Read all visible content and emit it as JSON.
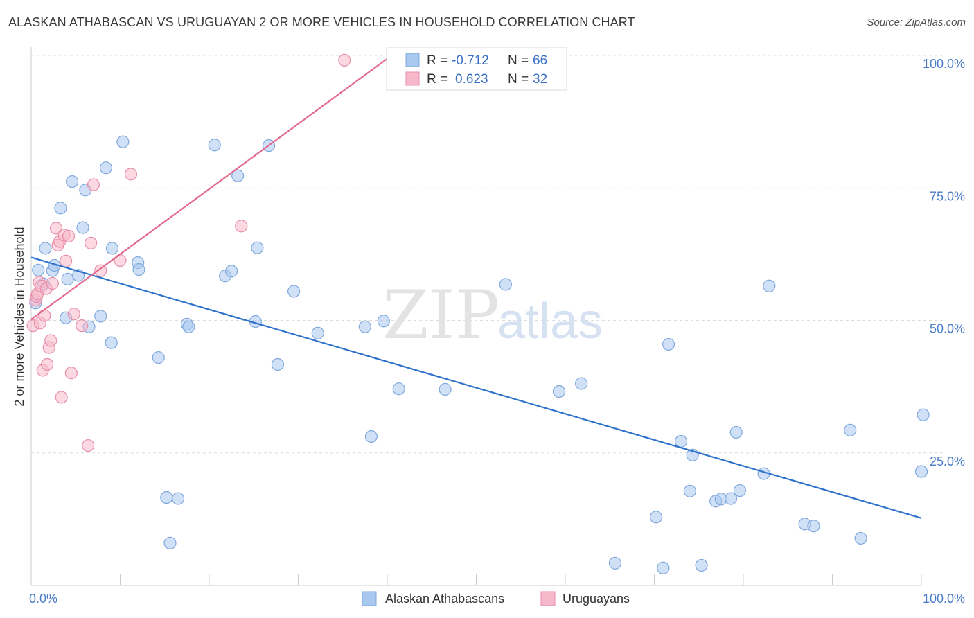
{
  "header": {
    "title": "ALASKAN ATHABASCAN VS URUGUAYAN 2 OR MORE VEHICLES IN HOUSEHOLD CORRELATION CHART",
    "source": "Source: ZipAtlas.com"
  },
  "watermark": {
    "zip": "ZIP",
    "atlas": "atlas"
  },
  "legend": {
    "r_label": "R =",
    "n_label": "N =",
    "entries": [
      {
        "r": "-0.712",
        "n": "66",
        "color": "#a9c8f0"
      },
      {
        "r": "0.623",
        "n": "32",
        "color": "#f7b8cb"
      }
    ]
  },
  "chart_data": {
    "type": "scatter",
    "title": "ALASKAN ATHABASCAN VS URUGUAYAN 2 OR MORE VEHICLES IN HOUSEHOLD CORRELATION CHART",
    "xlabel": "",
    "ylabel": "2 or more Vehicles in Household",
    "xlim": [
      0,
      100
    ],
    "ylim": [
      0,
      100
    ],
    "x_tick_labels": [
      "0.0%",
      "100.0%"
    ],
    "y_tick_values": [
      25,
      50,
      75,
      100
    ],
    "y_tick_labels": [
      "25.0%",
      "50.0%",
      "75.0%",
      "100.0%"
    ],
    "grid": true,
    "legend_placement": "bottom-center",
    "series": [
      {
        "name": "Alaskan Athabascans",
        "color": "#a9c8f0",
        "edge_color": "#7fa8dc",
        "trend_color": "#2f72cc",
        "trend": [
          [
            0,
            61.9
          ],
          [
            100,
            12.7
          ]
        ],
        "points": [
          [
            0.5,
            53.3
          ],
          [
            0.8,
            59.5
          ],
          [
            1.4,
            56.9
          ],
          [
            1.6,
            63.6
          ],
          [
            2.4,
            59.4
          ],
          [
            2.6,
            60.4
          ],
          [
            3.3,
            71.2
          ],
          [
            3.9,
            50.5
          ],
          [
            4.1,
            57.8
          ],
          [
            4.6,
            76.2
          ],
          [
            5.3,
            58.5
          ],
          [
            5.8,
            67.5
          ],
          [
            6.1,
            74.6
          ],
          [
            6.5,
            48.8
          ],
          [
            7.8,
            50.8
          ],
          [
            8.4,
            78.8
          ],
          [
            9.0,
            45.8
          ],
          [
            9.1,
            63.6
          ],
          [
            10.3,
            83.7
          ],
          [
            12.0,
            60.9
          ],
          [
            12.1,
            59.6
          ],
          [
            14.3,
            43.0
          ],
          [
            15.2,
            16.6
          ],
          [
            15.6,
            8.0
          ],
          [
            16.5,
            16.4
          ],
          [
            17.5,
            49.3
          ],
          [
            17.7,
            48.8
          ],
          [
            20.6,
            83.1
          ],
          [
            21.8,
            58.4
          ],
          [
            22.5,
            59.3
          ],
          [
            23.2,
            77.3
          ],
          [
            25.2,
            49.8
          ],
          [
            25.4,
            63.7
          ],
          [
            26.7,
            83.0
          ],
          [
            27.7,
            41.7
          ],
          [
            29.5,
            55.5
          ],
          [
            32.2,
            47.6
          ],
          [
            37.5,
            48.8
          ],
          [
            38.2,
            28.1
          ],
          [
            39.6,
            49.9
          ],
          [
            41.3,
            37.1
          ],
          [
            46.5,
            37.0
          ],
          [
            53.3,
            56.8
          ],
          [
            59.3,
            36.6
          ],
          [
            61.8,
            38.1
          ],
          [
            65.6,
            4.2
          ],
          [
            70.2,
            12.9
          ],
          [
            71.0,
            3.3
          ],
          [
            71.6,
            45.5
          ],
          [
            73.0,
            27.2
          ],
          [
            74.0,
            17.8
          ],
          [
            74.3,
            24.6
          ],
          [
            75.3,
            3.8
          ],
          [
            76.9,
            15.9
          ],
          [
            77.5,
            16.3
          ],
          [
            78.6,
            16.4
          ],
          [
            79.6,
            17.9
          ],
          [
            79.2,
            28.9
          ],
          [
            82.3,
            21.1
          ],
          [
            82.9,
            56.5
          ],
          [
            86.9,
            11.6
          ],
          [
            87.9,
            11.2
          ],
          [
            92.0,
            29.3
          ],
          [
            93.2,
            8.9
          ],
          [
            100.0,
            21.5
          ],
          [
            100.2,
            32.2
          ]
        ]
      },
      {
        "name": "Uruguayans",
        "color": "#f7b8cb",
        "edge_color": "#e78fab",
        "trend_color": "#e2688e",
        "trend": [
          [
            0,
            50.2
          ],
          [
            40.5,
            100.0
          ]
        ],
        "points": [
          [
            0.2,
            49.0
          ],
          [
            0.5,
            53.8
          ],
          [
            0.6,
            54.5
          ],
          [
            0.7,
            55.0
          ],
          [
            0.9,
            57.2
          ],
          [
            1.0,
            49.5
          ],
          [
            1.1,
            56.5
          ],
          [
            1.3,
            40.6
          ],
          [
            1.5,
            50.9
          ],
          [
            1.7,
            56.0
          ],
          [
            1.8,
            41.7
          ],
          [
            2.0,
            44.9
          ],
          [
            2.2,
            46.2
          ],
          [
            2.4,
            57.0
          ],
          [
            2.8,
            67.4
          ],
          [
            3.0,
            64.2
          ],
          [
            3.2,
            64.9
          ],
          [
            3.4,
            35.5
          ],
          [
            3.7,
            66.1
          ],
          [
            3.9,
            61.2
          ],
          [
            4.2,
            65.9
          ],
          [
            4.5,
            40.1
          ],
          [
            4.8,
            51.2
          ],
          [
            5.7,
            49.0
          ],
          [
            6.4,
            26.4
          ],
          [
            6.7,
            64.6
          ],
          [
            7.0,
            75.6
          ],
          [
            7.8,
            59.4
          ],
          [
            10.0,
            61.3
          ],
          [
            11.2,
            77.6
          ],
          [
            23.6,
            67.8
          ],
          [
            35.2,
            99.1
          ]
        ]
      }
    ]
  }
}
